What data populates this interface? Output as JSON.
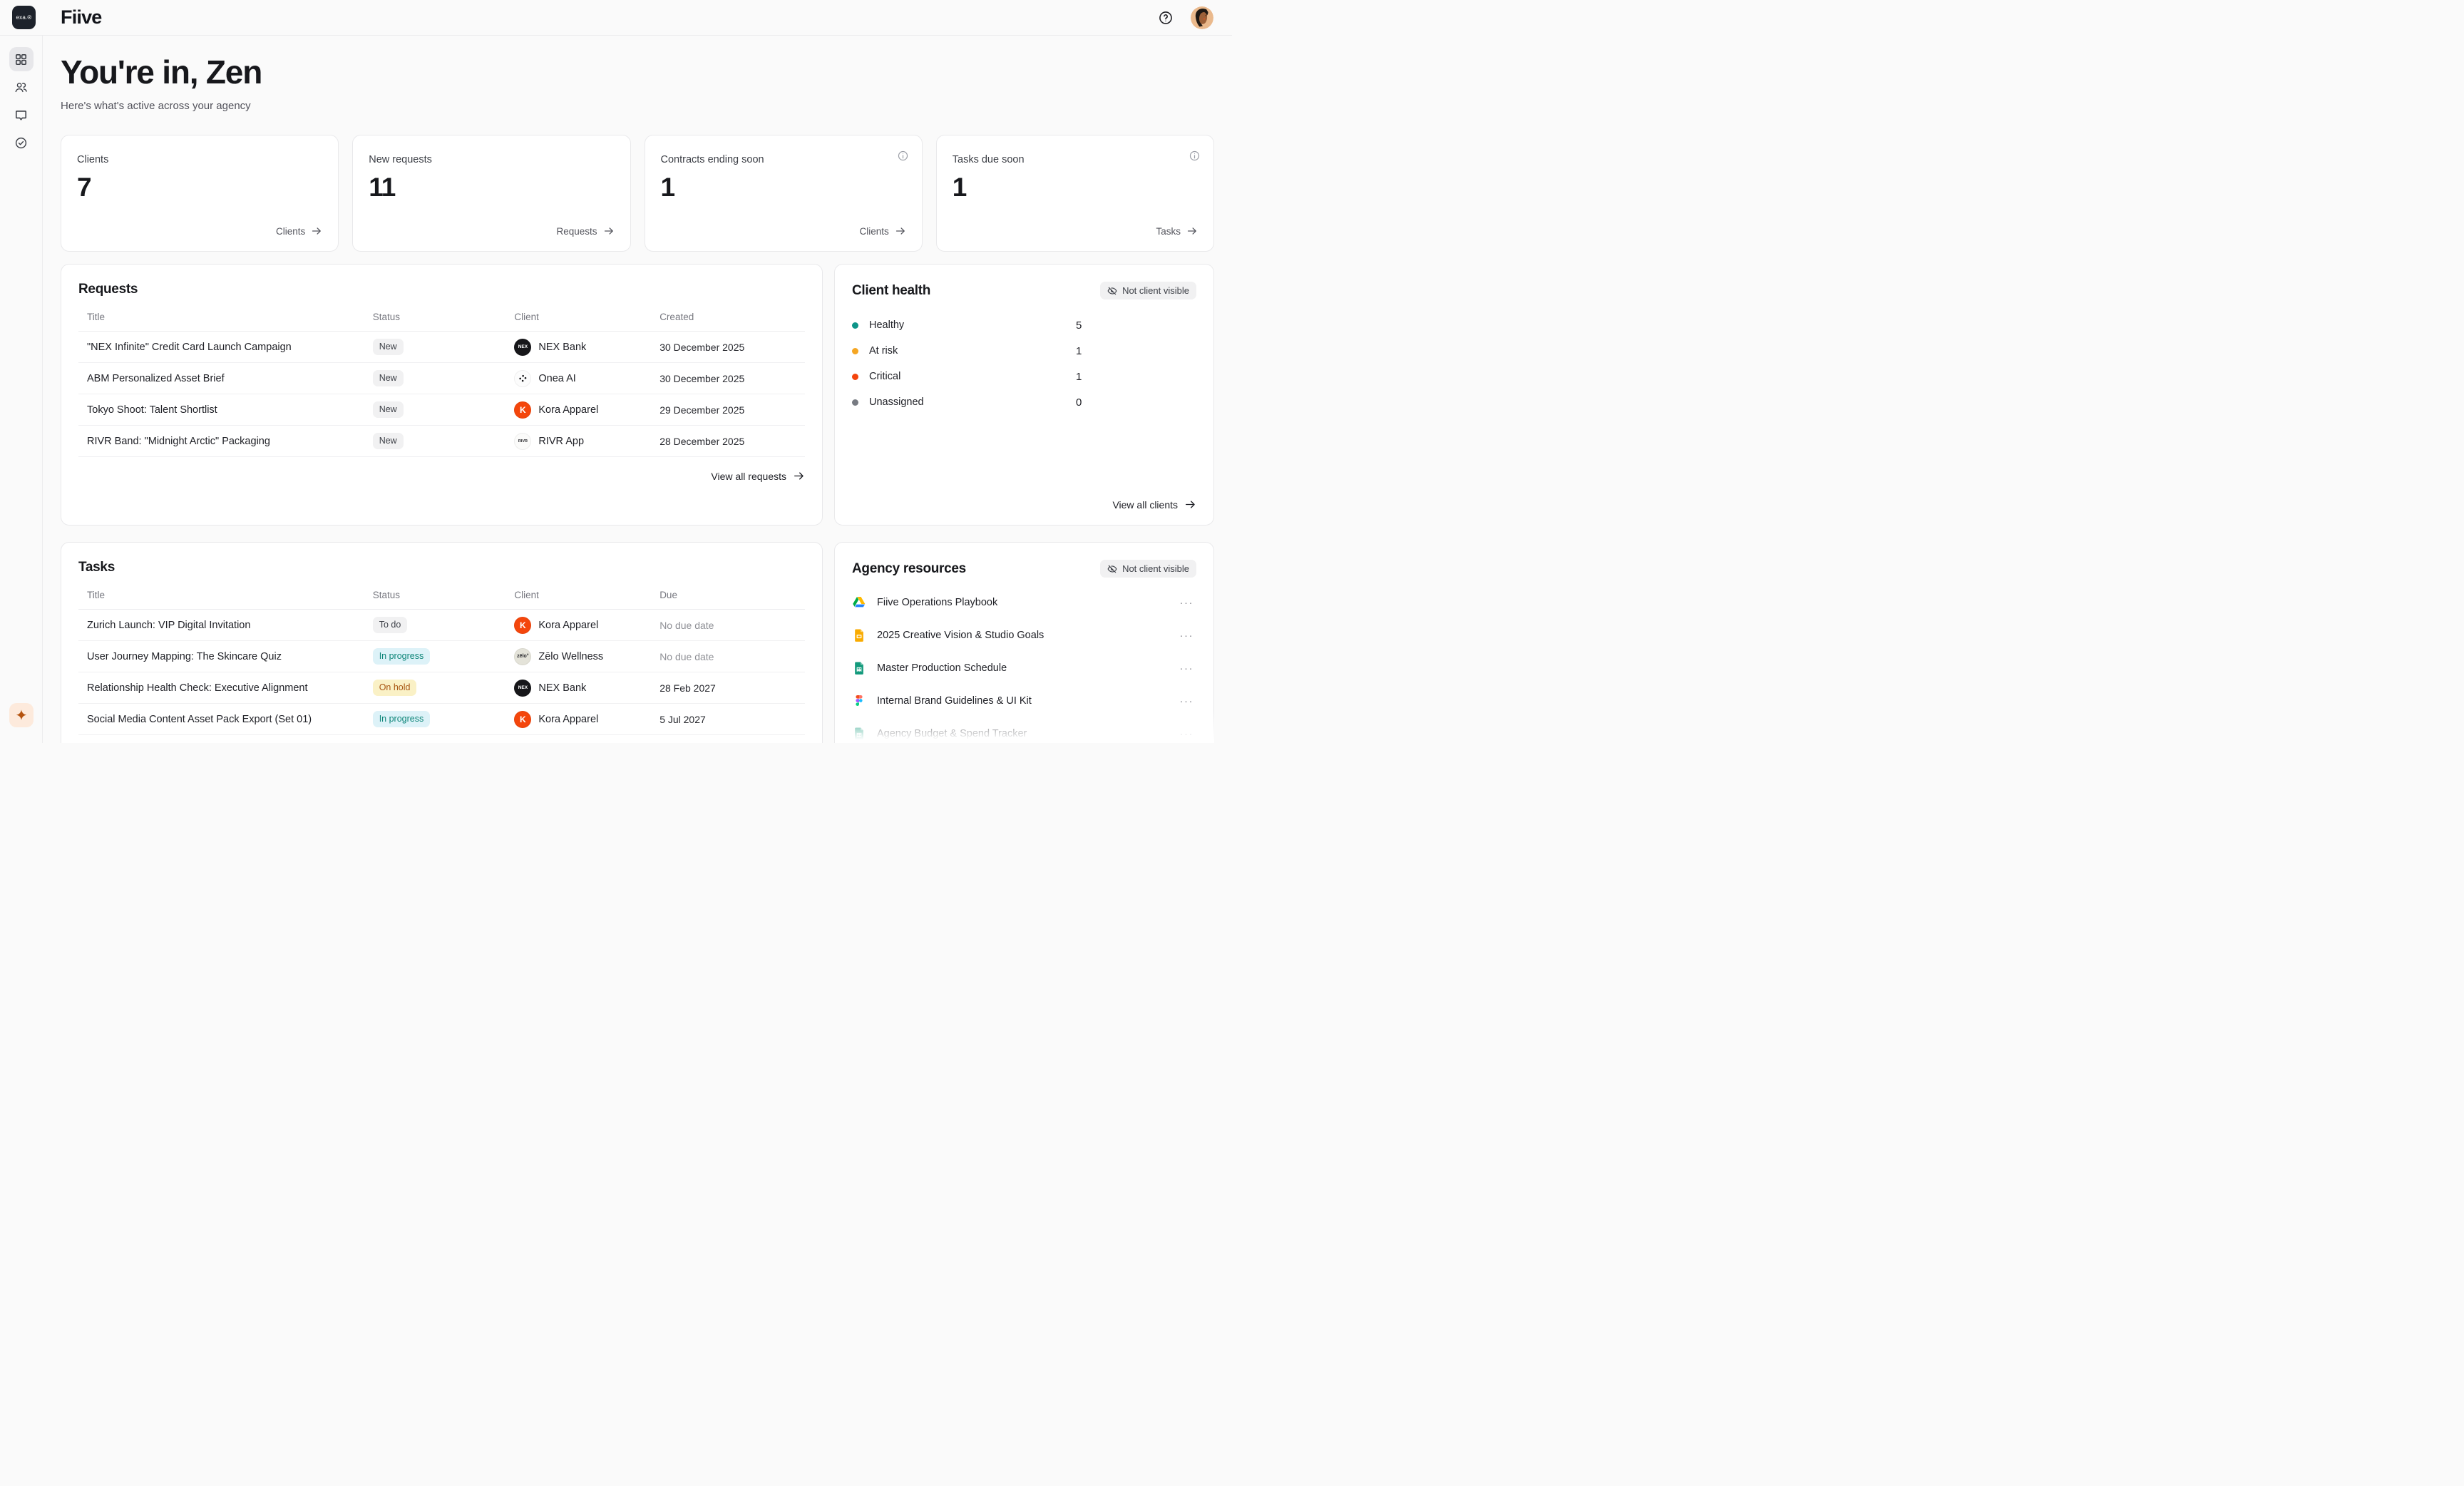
{
  "brand": {
    "badge": "exa.®",
    "name": "Fiive"
  },
  "hero": {
    "title": "You're in, Zen",
    "subtitle": "Here's what's active across your agency"
  },
  "sidebar": {
    "items": [
      {
        "name": "dashboard",
        "icon": "dashboard-grid-icon",
        "active": true
      },
      {
        "name": "clients",
        "icon": "people-icon",
        "active": false
      },
      {
        "name": "messages",
        "icon": "chat-bubble-icon",
        "active": false
      },
      {
        "name": "tasks",
        "icon": "check-circle-icon",
        "active": false
      }
    ],
    "assistant_icon": "sparkle-icon"
  },
  "stats": [
    {
      "label": "Clients",
      "value": "7",
      "link": "Clients",
      "info": false
    },
    {
      "label": "New requests",
      "value": "11",
      "link": "Requests",
      "info": false
    },
    {
      "label": "Contracts ending soon",
      "value": "1",
      "link": "Clients",
      "info": true
    },
    {
      "label": "Tasks due soon",
      "value": "1",
      "link": "Tasks",
      "info": true
    }
  ],
  "requests": {
    "title": "Requests",
    "columns": [
      "Title",
      "Status",
      "Client",
      "Created"
    ],
    "rows": [
      {
        "title": "\"NEX Infinite\" Credit Card Launch Campaign",
        "status": "New",
        "status_type": "neutral",
        "client": "NEX Bank",
        "avatar": "nex",
        "date": "30 December 2025",
        "date_muted": false
      },
      {
        "title": "ABM Personalized Asset Brief",
        "status": "New",
        "status_type": "neutral",
        "client": "Onea AI",
        "avatar": "onea",
        "date": "30 December 2025",
        "date_muted": false
      },
      {
        "title": "Tokyo Shoot: Talent Shortlist",
        "status": "New",
        "status_type": "neutral",
        "client": "Kora Apparel",
        "avatar": "kora",
        "date": "29 December 2025",
        "date_muted": false
      },
      {
        "title": "RIVR Band: \"Midnight Arctic\" Packaging",
        "status": "New",
        "status_type": "neutral",
        "client": "RIVR App",
        "avatar": "rivr",
        "date": "28 December 2025",
        "date_muted": false
      }
    ],
    "view_all": "View all requests"
  },
  "client_health": {
    "title": "Client health",
    "badge": "Not client visible",
    "items": [
      {
        "label": "Healthy",
        "count": "5",
        "color": "#0d9488"
      },
      {
        "label": "At risk",
        "count": "1",
        "color": "#f5a623"
      },
      {
        "label": "Critical",
        "count": "1",
        "color": "#f4440c"
      },
      {
        "label": "Unassigned",
        "count": "0",
        "color": "#777b82"
      }
    ],
    "view_all": "View all clients"
  },
  "tasks": {
    "title": "Tasks",
    "columns": [
      "Title",
      "Status",
      "Client",
      "Due"
    ],
    "rows": [
      {
        "title": "Zurich Launch: VIP Digital Invitation",
        "status": "To do",
        "status_type": "neutral",
        "client": "Kora Apparel",
        "avatar": "kora",
        "date": "No due date",
        "date_muted": true
      },
      {
        "title": "User Journey Mapping: The Skincare Quiz",
        "status": "In progress",
        "status_type": "progress",
        "client": "Zēlo Wellness",
        "avatar": "zelo",
        "date": "No due date",
        "date_muted": true
      },
      {
        "title": "Relationship Health Check: Executive Alignment",
        "status": "On hold",
        "status_type": "hold",
        "client": "NEX Bank",
        "avatar": "nex",
        "date": "28 Feb 2027",
        "date_muted": false
      },
      {
        "title": "Social Media Content Asset Pack Export (Set 01)",
        "status": "In progress",
        "status_type": "progress",
        "client": "Kora Apparel",
        "avatar": "kora",
        "date": "5 Jul 2027",
        "date_muted": false
      }
    ]
  },
  "resources": {
    "title": "Agency resources",
    "badge": "Not client visible",
    "items": [
      {
        "label": "Fiive Operations Playbook",
        "icon": "google-drive-icon"
      },
      {
        "label": "2025 Creative Vision & Studio Goals",
        "icon": "google-slides-icon"
      },
      {
        "label": "Master Production Schedule",
        "icon": "google-sheets-icon"
      },
      {
        "label": "Internal Brand Guidelines & UI Kit",
        "icon": "figma-icon"
      },
      {
        "label": "Agency Budget & Spend Tracker",
        "icon": "google-sheets-icon"
      }
    ],
    "menu_glyph": "···"
  },
  "avatars": {
    "nex": {
      "bg": "#17171a",
      "fg": "#ffffff",
      "text": "NEX"
    },
    "kora": {
      "bg": "#f4460c",
      "fg": "#ffffff",
      "text": "K"
    },
    "onea": {
      "bg": "#fcfcfc",
      "fg": "#17171a",
      "text": "",
      "dots": true
    },
    "rivr": {
      "bg": "#fbfbfa",
      "fg": "#26262b",
      "text": "RIVR"
    },
    "zelo": {
      "bg": "#e4e3d9",
      "fg": "#26262b",
      "text": "zēlo°"
    }
  },
  "colors": {
    "status": {
      "neutral": {
        "bg": "#f1f1f2",
        "fg": "#3f4249"
      },
      "progress": {
        "bg": "#ddf2f8",
        "fg": "#0d8578"
      },
      "hold": {
        "bg": "#faf1c6",
        "fg": "#a85613"
      }
    },
    "sparkle": {
      "bg": "#fdeadc",
      "fg": "#b4530f"
    },
    "accent_orange": "#f4460c",
    "teal": "#0d9488"
  }
}
